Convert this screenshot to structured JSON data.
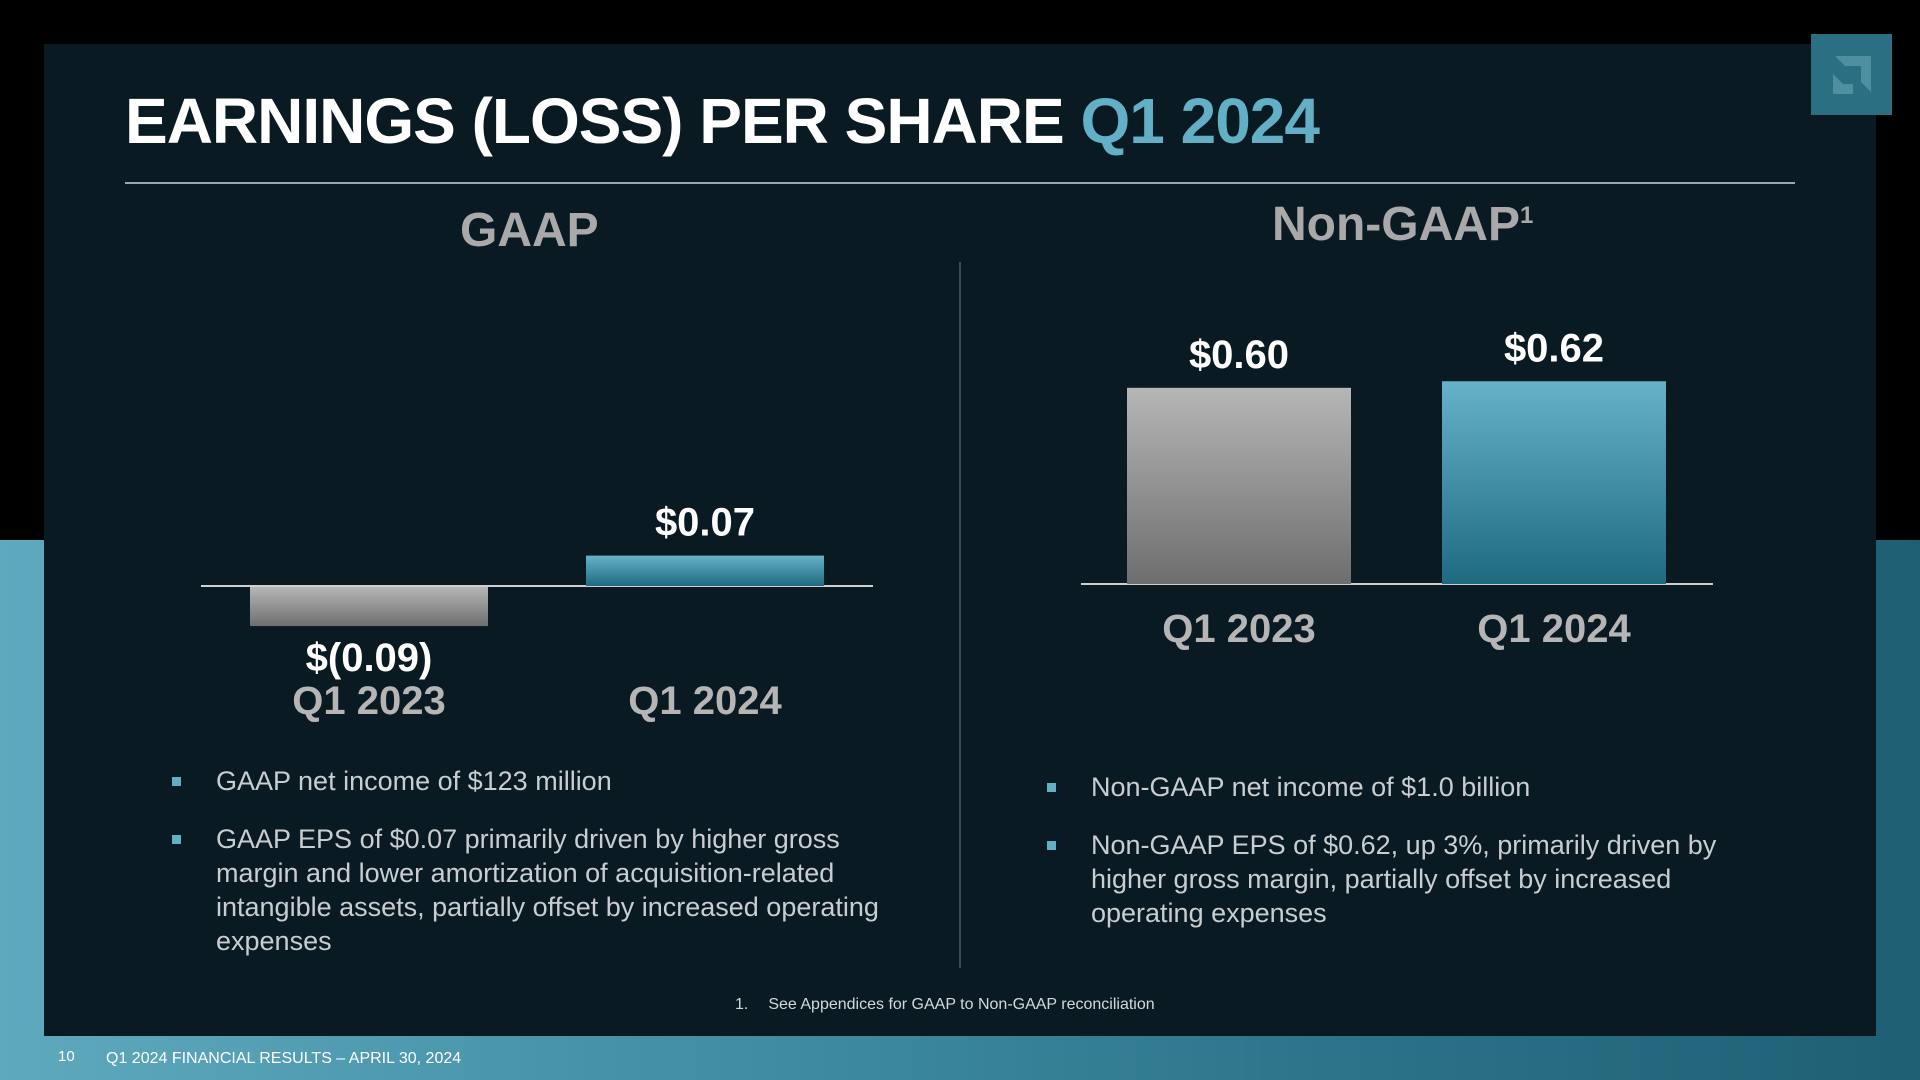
{
  "slide": {
    "title_main": "EARNINGS (LOSS) PER SHARE",
    "title_accent": "Q1 2024",
    "footnote_number": "1.",
    "footnote_text": "See Appendices for GAAP to Non-GAAP reconciliation",
    "page_number": "10",
    "footer_text": "Q1 2024 FINANCIAL RESULTS – APRIL 30, 2024"
  },
  "gaap": {
    "heading": "GAAP",
    "bullets": [
      "GAAP net income of $123 million",
      "GAAP EPS of $0.07 primarily driven by higher gross margin and lower amortization of acquisition-related intangible assets, partially offset by increased operating expenses"
    ]
  },
  "non_gaap": {
    "heading": "Non-GAAP",
    "heading_sup": "1",
    "bullets": [
      "Non-GAAP net income of $1.0 billion",
      "Non-GAAP EPS of $0.62, up 3%, primarily driven by higher gross margin, partially offset by increased operating expenses"
    ]
  },
  "colors": {
    "gray_bar": "#9a9a9a",
    "teal_bar": "#4f9db3",
    "accent": "#62afc6"
  },
  "chart_data": [
    {
      "type": "bar",
      "title": "GAAP",
      "categories": [
        "Q1 2023",
        "Q1 2024"
      ],
      "values": [
        -0.09,
        0.07
      ],
      "data_labels": [
        "$(0.09)",
        "$0.07"
      ],
      "ylim": [
        -0.1,
        0.1
      ]
    },
    {
      "type": "bar",
      "title": "Non-GAAP",
      "categories": [
        "Q1 2023",
        "Q1 2024"
      ],
      "values": [
        0.6,
        0.62
      ],
      "data_labels": [
        "$0.60",
        "$0.62"
      ],
      "ylim": [
        0,
        0.7
      ]
    }
  ]
}
